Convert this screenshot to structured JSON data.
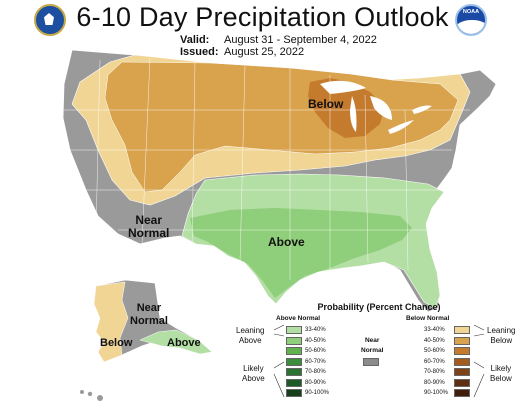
{
  "title": "6-10 Day Precipitation Outlook",
  "valid_label": "Valid:",
  "valid_value": "August 31 - September 4, 2022",
  "issued_label": "Issued:",
  "issued_value": "August 25, 2022",
  "logos": {
    "left": "doc-seal",
    "right": "noaa-logo"
  },
  "noaa_text": "NOAA",
  "map_labels": {
    "below_great_lakes": "Below",
    "near_normal_southwest": "Near\nNormal",
    "above_south": "Above",
    "near_normal_alaska": "Near\nNormal",
    "below_alaska": "Below",
    "above_alaska": "Above"
  },
  "legend": {
    "title": "Probability (Percent Chance)",
    "above_header": "Above Normal",
    "below_header": "Below Normal",
    "near_normal": "Near\nNormal",
    "leaning_above": "Leaning\nAbove",
    "likely_above": "Likely\nAbove",
    "leaning_below": "Leaning\nBelow",
    "likely_below": "Likely\nBelow",
    "above_bins": [
      {
        "label": "33-40%",
        "color": "#b3dea4"
      },
      {
        "label": "40-50%",
        "color": "#8fce7a"
      },
      {
        "label": "50-60%",
        "color": "#5fb24d"
      },
      {
        "label": "60-70%",
        "color": "#3c8d3c"
      },
      {
        "label": "70-80%",
        "color": "#2c7233"
      },
      {
        "label": "80-90%",
        "color": "#1f5a26"
      },
      {
        "label": "90-100%",
        "color": "#163f1a"
      }
    ],
    "below_bins": [
      {
        "label": "33-40%",
        "color": "#f1d595"
      },
      {
        "label": "40-50%",
        "color": "#d9a24c"
      },
      {
        "label": "50-60%",
        "color": "#c57b2e"
      },
      {
        "label": "60-70%",
        "color": "#a35b20"
      },
      {
        "label": "70-80%",
        "color": "#7f4318"
      },
      {
        "label": "80-90%",
        "color": "#5e2f12"
      },
      {
        "label": "90-100%",
        "color": "#3f1e0c"
      }
    ],
    "near_normal_color": "#8c8c8c"
  },
  "colors": {
    "near_normal": "#9a9a9a",
    "leaning_below": "#f1d595",
    "below_40_50": "#d9a24c",
    "below_50_60": "#c57b2e",
    "leaning_above": "#b3dea4",
    "above_40_50": "#8fce7a",
    "lakes": "#ffffff",
    "boundary": "#ffffff"
  }
}
